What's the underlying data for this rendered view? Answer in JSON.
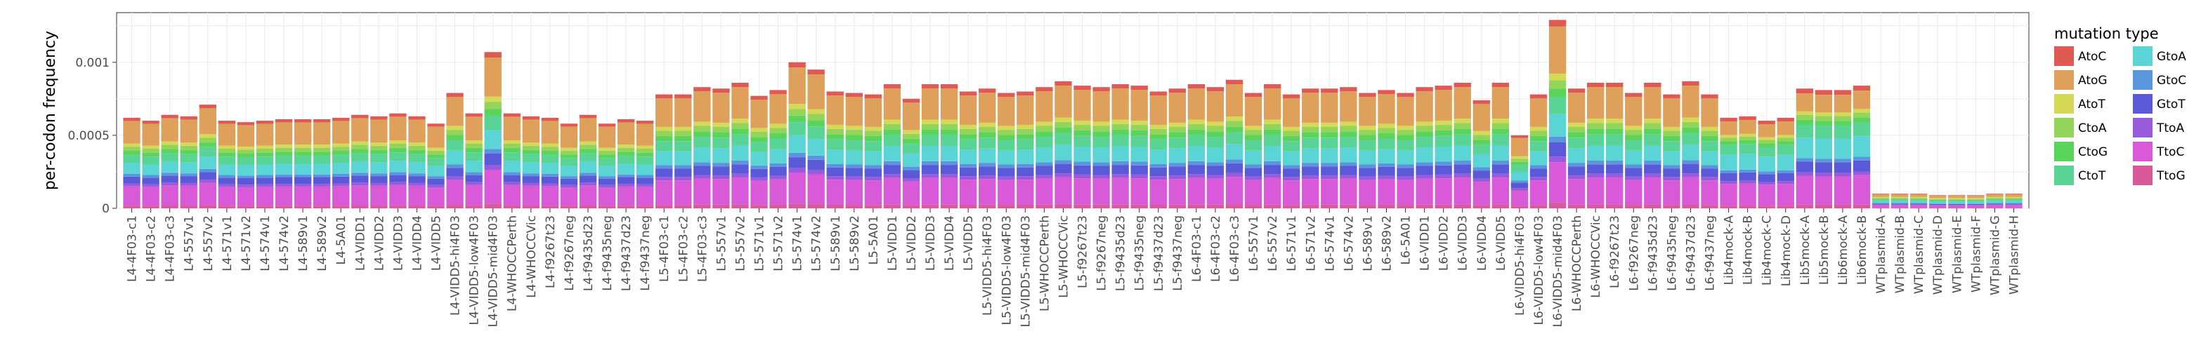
{
  "chart_data": {
    "type": "bar",
    "stacked": true,
    "ylabel": "per-codon frequency",
    "xlabel": "",
    "ylim": [
      0,
      0.00134
    ],
    "yticks": [
      0,
      0.0005,
      0.001
    ],
    "ytick_labels": [
      "0",
      "0.0005",
      "0.001"
    ],
    "grid": true,
    "legend_position": "right",
    "legend_title": "mutation type",
    "mutation_types": [
      "AtoC",
      "AtoG",
      "AtoT",
      "CtoA",
      "CtoG",
      "CtoT",
      "GtoA",
      "GtoC",
      "GtoT",
      "TtoA",
      "TtoC",
      "TtoG"
    ],
    "colors": {
      "AtoC": "#e05a55",
      "AtoG": "#dea05a",
      "AtoT": "#d4d957",
      "CtoA": "#94d45a",
      "CtoG": "#5ad45a",
      "CtoT": "#5ad495",
      "GtoA": "#5ad4d4",
      "GtoC": "#5a95de",
      "GtoT": "#5a5ad9",
      "TtoA": "#9a5adc",
      "TtoC": "#d95ad9",
      "TtoG": "#d95a9a"
    },
    "categories": [
      "L4-4F03-c1",
      "L4-4F03-c2",
      "L4-4F03-c3",
      "L4-557v1",
      "L4-557v2",
      "L4-571v1",
      "L4-571v2",
      "L4-574v1",
      "L4-574v2",
      "L4-589v1",
      "L4-589v2",
      "L4-5A01",
      "L4-VIDD1",
      "L4-VIDD2",
      "L4-VIDD3",
      "L4-VIDD4",
      "L4-VIDD5",
      "L4-VIDD5-hi4F03",
      "L4-VIDD5-low4F03",
      "L4-VIDD5-mid4F03",
      "L4-WHOCCPerth",
      "L4-WHOCCVic",
      "L4-f9267t23",
      "L4-f9267neg",
      "L4-f9435d23",
      "L4-f9435neg",
      "L4-f9437d23",
      "L4-f9437neg",
      "L5-4F03-c1",
      "L5-4F03-c2",
      "L5-4F03-c3",
      "L5-557v1",
      "L5-557v2",
      "L5-571v1",
      "L5-571v2",
      "L5-574v1",
      "L5-574v2",
      "L5-589v1",
      "L5-589v2",
      "L5-5A01",
      "L5-VIDD1",
      "L5-VIDD2",
      "L5-VIDD3",
      "L5-VIDD4",
      "L5-VIDD5",
      "L5-VIDD5-hi4F03",
      "L5-VIDD5-low4F03",
      "L5-VIDD5-mid4F03",
      "L5-WHOCCPerth",
      "L5-WHOCCVic",
      "L5-f9267t23",
      "L5-f9267neg",
      "L5-f9435d23",
      "L5-f9435neg",
      "L5-f9437d23",
      "L5-f9437neg",
      "L6-4F03-c1",
      "L6-4F03-c2",
      "L6-4F03-c3",
      "L6-557v1",
      "L6-557v2",
      "L6-571v1",
      "L6-571v2",
      "L6-574v1",
      "L6-574v2",
      "L6-589v1",
      "L6-589v2",
      "L6-5A01",
      "L6-VIDD1",
      "L6-VIDD2",
      "L6-VIDD3",
      "L6-VIDD4",
      "L6-VIDD5",
      "L6-VIDD5-hi4F03",
      "L6-VIDD5-low4F03",
      "L6-VIDD5-mid4F03",
      "L6-WHOCCPerth",
      "L6-WHOCCVic",
      "L6-f9267t23",
      "L6-f9267neg",
      "L6-f9435d23",
      "L6-f9435neg",
      "L6-f9437d23",
      "L6-f9437neg",
      "Lib4mock-A",
      "Lib4mock-B",
      "Lib4mock-C",
      "Lib4mock-D",
      "Lib5mock-A",
      "Lib5mock-B",
      "Lib6mock-A",
      "Lib6mock-B",
      "WTplasmid-A",
      "WTplasmid-B",
      "WTplasmid-C",
      "WTplasmid-D",
      "WTplasmid-E",
      "WTplasmid-F",
      "WTplasmid-G",
      "WTplasmid-H"
    ],
    "totals": [
      0.00062,
      0.0006,
      0.00064,
      0.00063,
      0.00071,
      0.0006,
      0.00059,
      0.0006,
      0.00061,
      0.00061,
      0.00061,
      0.00062,
      0.00064,
      0.00063,
      0.00065,
      0.00063,
      0.00058,
      0.00079,
      0.00065,
      0.00107,
      0.00065,
      0.00063,
      0.00062,
      0.00058,
      0.00064,
      0.00058,
      0.00061,
      0.0006,
      0.00078,
      0.00078,
      0.00083,
      0.00082,
      0.00086,
      0.00077,
      0.00081,
      0.001,
      0.00095,
      0.0008,
      0.00079,
      0.00078,
      0.00085,
      0.00075,
      0.00085,
      0.00085,
      0.0008,
      0.00082,
      0.00079,
      0.0008,
      0.00083,
      0.00087,
      0.00084,
      0.00083,
      0.00085,
      0.00084,
      0.0008,
      0.00082,
      0.00085,
      0.00083,
      0.00088,
      0.00079,
      0.00085,
      0.00078,
      0.00082,
      0.00082,
      0.00083,
      0.00079,
      0.00081,
      0.00079,
      0.00083,
      0.00084,
      0.00086,
      0.00074,
      0.00086,
      0.0005,
      0.00078,
      0.00129,
      0.00082,
      0.00086,
      0.00086,
      0.00079,
      0.00086,
      0.00078,
      0.00087,
      0.00078,
      0.00062,
      0.00063,
      0.0006,
      0.00062,
      0.00082,
      0.00081,
      0.00081,
      0.00084,
      0.0001,
      0.0001,
      0.0001,
      9e-05,
      9e-05,
      9e-05,
      0.0001,
      0.0001
    ],
    "profiles": {
      "L": [
        0.035,
        0.25,
        0.035,
        0.045,
        0.045,
        0.09,
        0.12,
        0.03,
        0.075,
        0.03,
        0.215,
        0.03
      ],
      "mock": [
        0.04,
        0.15,
        0.03,
        0.04,
        0.04,
        0.11,
        0.17,
        0.03,
        0.09,
        0.03,
        0.24,
        0.03
      ],
      "WT": [
        0.05,
        0.18,
        0.08,
        0.06,
        0.06,
        0.1,
        0.14,
        0.04,
        0.06,
        0.04,
        0.18,
        0.06
      ]
    }
  }
}
